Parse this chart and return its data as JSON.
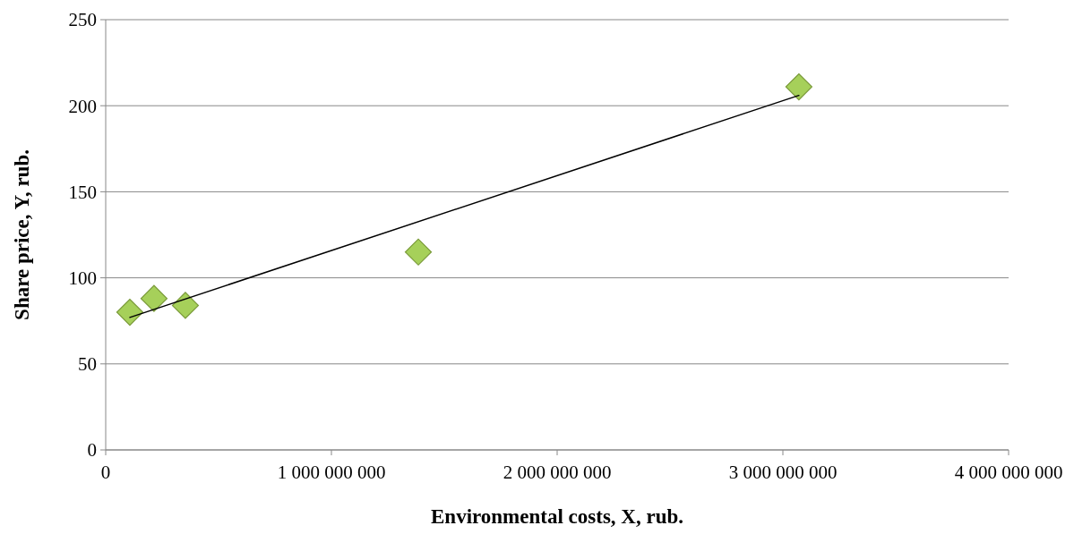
{
  "chart_data": {
    "type": "scatter",
    "xlabel": "Environmental costs, X, rub.",
    "ylabel": "Share price, Y, rub.",
    "xlim": [
      0,
      4000000000
    ],
    "xticks": [
      0,
      {
        "value": 1000000000,
        "label": "1 000 000 000"
      },
      {
        "value": 2000000000,
        "label": "2 000 000 000"
      },
      {
        "value": 3000000000,
        "label": "3 000 000 000"
      },
      {
        "value": 4000000000,
        "label": "4 000 000 000"
      }
    ],
    "ylim": [
      0,
      250
    ],
    "yticks": [
      0,
      50,
      100,
      150,
      200,
      250
    ],
    "grid": "y",
    "marker": "diamond",
    "series": [
      {
        "color": "#a6d05a",
        "x": [
          107000000,
          214000000,
          353000000,
          1385000000,
          3071000000
        ],
        "values": [
          80,
          88,
          84,
          115,
          211
        ]
      },
      {
        "type": "line",
        "color": "#000000",
        "x": [
          107000000,
          3071000000
        ],
        "values": [
          77,
          206
        ],
        "marker": "none",
        "line_style": "solid"
      }
    ]
  }
}
